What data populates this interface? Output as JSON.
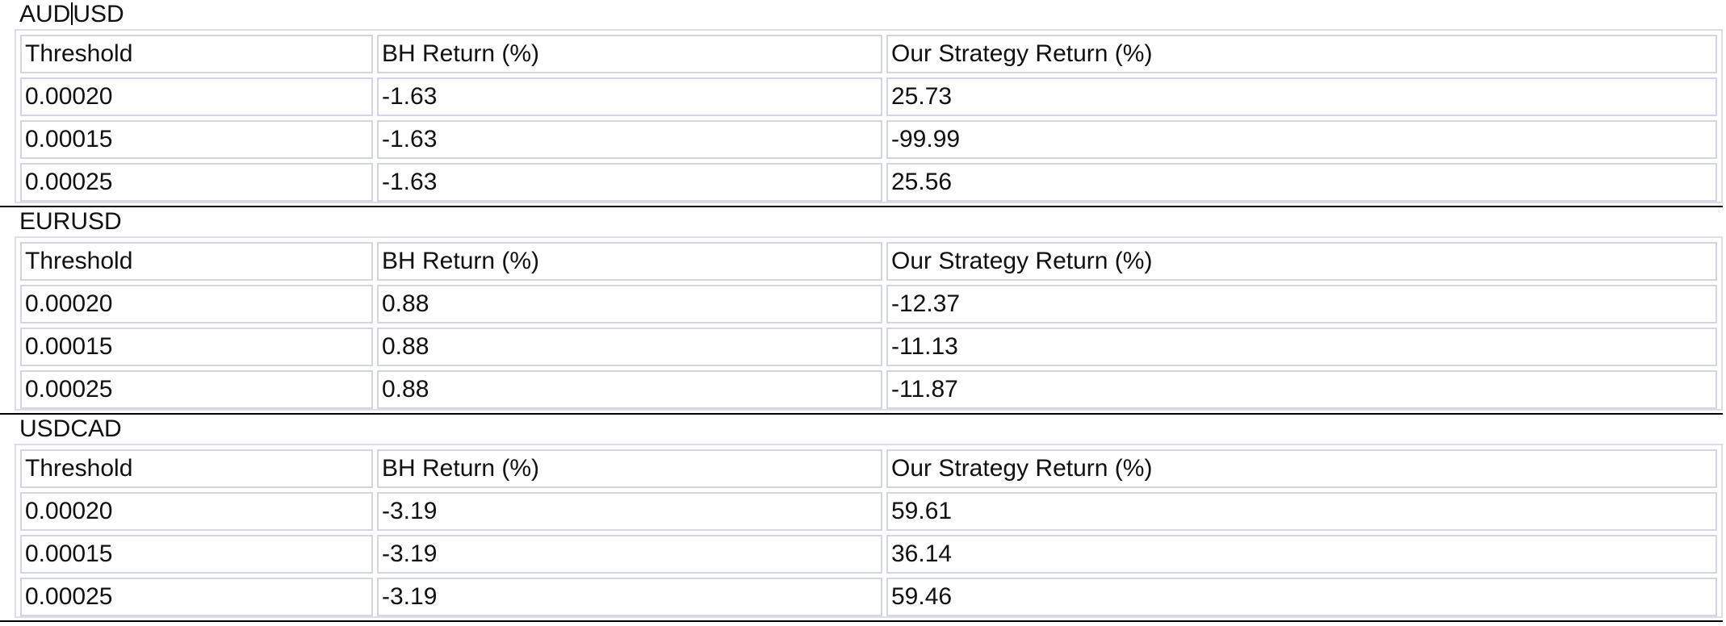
{
  "columns": [
    "Threshold",
    "BH Return (%)",
    "Our Strategy Return (%)"
  ],
  "sections": [
    {
      "pair_prefix": "AUD",
      "pair_suffix": "USD",
      "rows": [
        [
          "0.00020",
          "-1.63",
          "25.73"
        ],
        [
          "0.00015",
          "-1.63",
          "-99.99"
        ],
        [
          "0.00025",
          "-1.63",
          "25.56"
        ]
      ]
    },
    {
      "pair": "EURUSD",
      "rows": [
        [
          "0.00020",
          "0.88",
          "-12.37"
        ],
        [
          "0.00015",
          "0.88",
          "-11.13"
        ],
        [
          "0.00025",
          "0.88",
          "-11.87"
        ]
      ]
    },
    {
      "pair": "USDCAD",
      "rows": [
        [
          "0.00020",
          "-3.19",
          "59.61"
        ],
        [
          "0.00015",
          "-3.19",
          "36.14"
        ],
        [
          "0.00025",
          "-3.19",
          "59.46"
        ]
      ]
    }
  ]
}
